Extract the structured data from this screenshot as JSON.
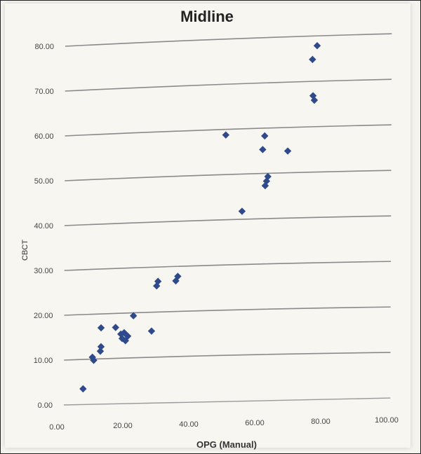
{
  "chart_data": {
    "type": "scatter",
    "title": "Midline",
    "xlabel": "OPG (Manual)",
    "ylabel": "CBCT",
    "xlim": [
      0,
      100
    ],
    "ylim": [
      0,
      80
    ],
    "x_ticks": [
      "0.00",
      "20.00",
      "40.00",
      "60.00",
      "80.00",
      "100.00"
    ],
    "y_ticks": [
      "0.00",
      "10.00",
      "20.00",
      "30.00",
      "40.00",
      "50.00",
      "60.00",
      "70.00",
      "80.00"
    ],
    "grid": "horizontal",
    "marker": "diamond",
    "marker_color": "#2f4a8a",
    "gridline_color": "#8a8a8a",
    "points": [
      {
        "x": 5.8,
        "y": 3.5
      },
      {
        "x": 8.6,
        "y": 10.5
      },
      {
        "x": 9.0,
        "y": 9.8
      },
      {
        "x": 11.0,
        "y": 11.8
      },
      {
        "x": 11.2,
        "y": 12.8
      },
      {
        "x": 11.2,
        "y": 17.0
      },
      {
        "x": 15.6,
        "y": 17.0
      },
      {
        "x": 17.2,
        "y": 15.5
      },
      {
        "x": 17.6,
        "y": 14.5
      },
      {
        "x": 18.2,
        "y": 15.8
      },
      {
        "x": 18.6,
        "y": 14.0
      },
      {
        "x": 19.3,
        "y": 15.0
      },
      {
        "x": 21.0,
        "y": 19.5
      },
      {
        "x": 26.5,
        "y": 16.0
      },
      {
        "x": 28.0,
        "y": 26.0
      },
      {
        "x": 28.4,
        "y": 27.0
      },
      {
        "x": 33.8,
        "y": 27.0
      },
      {
        "x": 34.4,
        "y": 28.0
      },
      {
        "x": 48.8,
        "y": 59.0
      },
      {
        "x": 53.8,
        "y": 42.0
      },
      {
        "x": 60.0,
        "y": 55.5
      },
      {
        "x": 60.6,
        "y": 58.5
      },
      {
        "x": 60.8,
        "y": 47.5
      },
      {
        "x": 61.2,
        "y": 48.5
      },
      {
        "x": 61.6,
        "y": 49.5
      },
      {
        "x": 67.6,
        "y": 55.0
      },
      {
        "x": 75.0,
        "y": 75.0
      },
      {
        "x": 75.2,
        "y": 67.0
      },
      {
        "x": 75.6,
        "y": 66.0
      },
      {
        "x": 76.4,
        "y": 78.0
      }
    ]
  }
}
